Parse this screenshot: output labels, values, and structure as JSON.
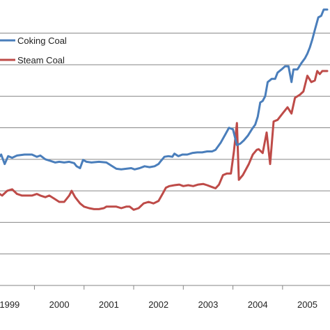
{
  "chart_data": {
    "type": "line",
    "title": "",
    "xlabel": "",
    "ylabel": "",
    "x_tick_labels": [
      "1999",
      "2000",
      "2001",
      "2002",
      "2003",
      "2004",
      "2005"
    ],
    "xlim": [
      1998.75,
      2005.4
    ],
    "ylim": [
      0,
      8.5
    ],
    "grid": true,
    "legend_position": "top-left",
    "series": [
      {
        "name": "Coking Coal",
        "color": "#4a7ebb",
        "points": [
          [
            1998.75,
            4.0
          ],
          [
            1998.83,
            4.15
          ],
          [
            1998.9,
            3.85
          ],
          [
            1998.97,
            4.1
          ],
          [
            1999.05,
            4.05
          ],
          [
            1999.15,
            4.12
          ],
          [
            1999.3,
            4.15
          ],
          [
            1999.45,
            4.15
          ],
          [
            1999.55,
            4.08
          ],
          [
            1999.62,
            4.12
          ],
          [
            1999.72,
            4.0
          ],
          [
            1999.82,
            3.95
          ],
          [
            1999.92,
            3.9
          ],
          [
            2000.0,
            3.92
          ],
          [
            2000.1,
            3.9
          ],
          [
            2000.2,
            3.92
          ],
          [
            2000.3,
            3.88
          ],
          [
            2000.35,
            3.78
          ],
          [
            2000.42,
            3.72
          ],
          [
            2000.48,
            3.98
          ],
          [
            2000.55,
            3.92
          ],
          [
            2000.65,
            3.9
          ],
          [
            2000.8,
            3.92
          ],
          [
            2000.95,
            3.9
          ],
          [
            2001.05,
            3.8
          ],
          [
            2001.15,
            3.7
          ],
          [
            2001.25,
            3.68
          ],
          [
            2001.35,
            3.7
          ],
          [
            2001.45,
            3.72
          ],
          [
            2001.52,
            3.68
          ],
          [
            2001.62,
            3.72
          ],
          [
            2001.72,
            3.78
          ],
          [
            2001.82,
            3.75
          ],
          [
            2001.92,
            3.78
          ],
          [
            2002.0,
            3.85
          ],
          [
            2002.05,
            3.95
          ],
          [
            2002.12,
            4.08
          ],
          [
            2002.2,
            4.1
          ],
          [
            2002.28,
            4.08
          ],
          [
            2002.32,
            4.18
          ],
          [
            2002.4,
            4.1
          ],
          [
            2002.48,
            4.15
          ],
          [
            2002.58,
            4.15
          ],
          [
            2002.68,
            4.2
          ],
          [
            2002.78,
            4.22
          ],
          [
            2002.88,
            4.22
          ],
          [
            2002.98,
            4.25
          ],
          [
            2003.08,
            4.25
          ],
          [
            2003.15,
            4.3
          ],
          [
            2003.25,
            4.52
          ],
          [
            2003.35,
            4.8
          ],
          [
            2003.42,
            5.0
          ],
          [
            2003.5,
            4.95
          ],
          [
            2003.58,
            4.45
          ],
          [
            2003.65,
            4.5
          ],
          [
            2003.72,
            4.6
          ],
          [
            2003.8,
            4.75
          ],
          [
            2003.88,
            4.95
          ],
          [
            2003.95,
            5.1
          ],
          [
            2004.0,
            5.35
          ],
          [
            2004.05,
            5.8
          ],
          [
            2004.1,
            5.85
          ],
          [
            2004.15,
            6.0
          ],
          [
            2004.2,
            6.45
          ],
          [
            2004.28,
            6.55
          ],
          [
            2004.35,
            6.55
          ],
          [
            2004.4,
            6.75
          ],
          [
            2004.48,
            6.85
          ],
          [
            2004.55,
            6.95
          ],
          [
            2004.62,
            6.95
          ],
          [
            2004.68,
            6.45
          ],
          [
            2004.72,
            6.85
          ],
          [
            2004.8,
            6.85
          ],
          [
            2004.88,
            7.05
          ],
          [
            2004.95,
            7.2
          ],
          [
            2005.0,
            7.35
          ],
          [
            2005.05,
            7.55
          ],
          [
            2005.1,
            7.8
          ],
          [
            2005.15,
            8.1
          ],
          [
            2005.22,
            8.5
          ],
          [
            2005.28,
            8.55
          ],
          [
            2005.33,
            8.75
          ],
          [
            2005.4,
            8.75
          ]
        ]
      },
      {
        "name": "Steam Coal",
        "color": "#be4b48",
        "points": [
          [
            1998.75,
            2.95
          ],
          [
            1998.85,
            2.85
          ],
          [
            1998.95,
            3.0
          ],
          [
            1999.05,
            3.05
          ],
          [
            1999.15,
            2.9
          ],
          [
            1999.25,
            2.85
          ],
          [
            1999.35,
            2.85
          ],
          [
            1999.45,
            2.85
          ],
          [
            1999.55,
            2.9
          ],
          [
            1999.62,
            2.85
          ],
          [
            1999.72,
            2.8
          ],
          [
            1999.8,
            2.85
          ],
          [
            1999.9,
            2.75
          ],
          [
            2000.0,
            2.65
          ],
          [
            2000.1,
            2.65
          ],
          [
            2000.2,
            2.85
          ],
          [
            2000.25,
            3.0
          ],
          [
            2000.32,
            2.8
          ],
          [
            2000.42,
            2.6
          ],
          [
            2000.5,
            2.5
          ],
          [
            2000.6,
            2.45
          ],
          [
            2000.7,
            2.42
          ],
          [
            2000.8,
            2.42
          ],
          [
            2000.9,
            2.45
          ],
          [
            2000.95,
            2.5
          ],
          [
            2001.05,
            2.5
          ],
          [
            2001.15,
            2.5
          ],
          [
            2001.25,
            2.45
          ],
          [
            2001.35,
            2.5
          ],
          [
            2001.42,
            2.5
          ],
          [
            2001.5,
            2.4
          ],
          [
            2001.6,
            2.45
          ],
          [
            2001.7,
            2.6
          ],
          [
            2001.8,
            2.65
          ],
          [
            2001.9,
            2.6
          ],
          [
            2002.0,
            2.68
          ],
          [
            2002.08,
            2.9
          ],
          [
            2002.15,
            3.1
          ],
          [
            2002.22,
            3.15
          ],
          [
            2002.32,
            3.18
          ],
          [
            2002.42,
            3.2
          ],
          [
            2002.5,
            3.15
          ],
          [
            2002.6,
            3.18
          ],
          [
            2002.7,
            3.15
          ],
          [
            2002.8,
            3.2
          ],
          [
            2002.9,
            3.22
          ],
          [
            2002.98,
            3.18
          ],
          [
            2003.08,
            3.12
          ],
          [
            2003.15,
            3.08
          ],
          [
            2003.22,
            3.2
          ],
          [
            2003.3,
            3.5
          ],
          [
            2003.38,
            3.55
          ],
          [
            2003.46,
            3.55
          ],
          [
            2003.52,
            4.25
          ],
          [
            2003.58,
            5.15
          ],
          [
            2003.62,
            3.35
          ],
          [
            2003.7,
            3.5
          ],
          [
            2003.82,
            3.85
          ],
          [
            2003.9,
            4.15
          ],
          [
            2003.98,
            4.3
          ],
          [
            2004.02,
            4.32
          ],
          [
            2004.1,
            4.2
          ],
          [
            2004.18,
            4.85
          ],
          [
            2004.25,
            3.85
          ],
          [
            2004.32,
            5.2
          ],
          [
            2004.4,
            5.25
          ],
          [
            2004.5,
            5.45
          ],
          [
            2004.6,
            5.65
          ],
          [
            2004.68,
            5.45
          ],
          [
            2004.75,
            5.95
          ],
          [
            2004.85,
            6.05
          ],
          [
            2004.92,
            6.15
          ],
          [
            2005.0,
            6.65
          ],
          [
            2005.08,
            6.45
          ],
          [
            2005.15,
            6.5
          ],
          [
            2005.2,
            6.8
          ],
          [
            2005.25,
            6.7
          ],
          [
            2005.3,
            6.8
          ],
          [
            2005.4,
            6.8
          ]
        ]
      }
    ]
  }
}
